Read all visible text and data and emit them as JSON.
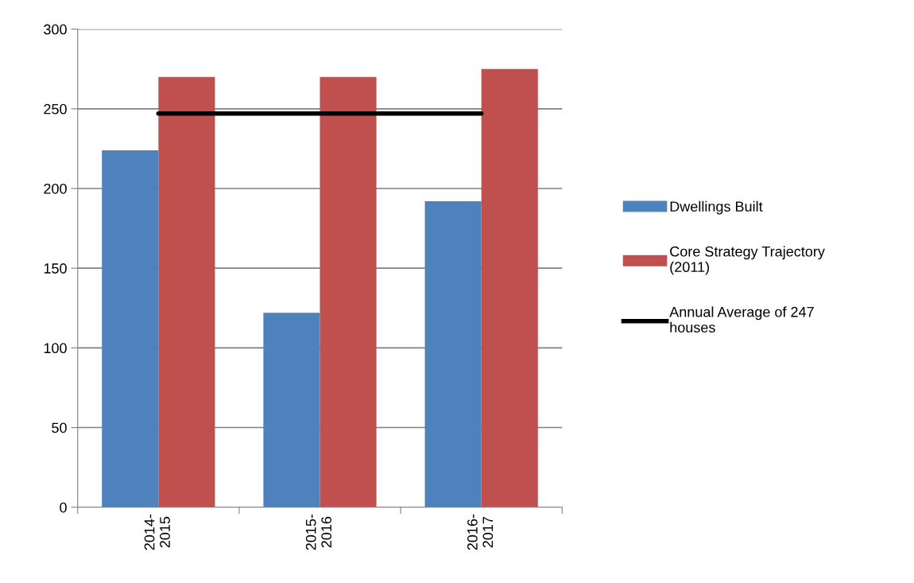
{
  "chart_data": {
    "type": "bar",
    "categories": [
      "2014-\n2015",
      "2015-\n2016",
      "2016-\n2017"
    ],
    "series": [
      {
        "name": "Dwellings Built",
        "color": "#4f81bd",
        "values": [
          224,
          122,
          192
        ]
      },
      {
        "name": "Core Strategy Trajectory\n(2011)",
        "color": "#c0504d",
        "values": [
          270,
          270,
          275
        ]
      },
      {
        "name": "Annual Average of 247\nhouses",
        "color": "#000000",
        "type": "line",
        "values": [
          247,
          247,
          247
        ]
      }
    ],
    "ylim": [
      0,
      300
    ],
    "yticks": [
      0,
      50,
      100,
      150,
      200,
      250,
      300
    ],
    "grid": "y",
    "legend": "right",
    "marker": "none",
    "line_style": "solid"
  }
}
